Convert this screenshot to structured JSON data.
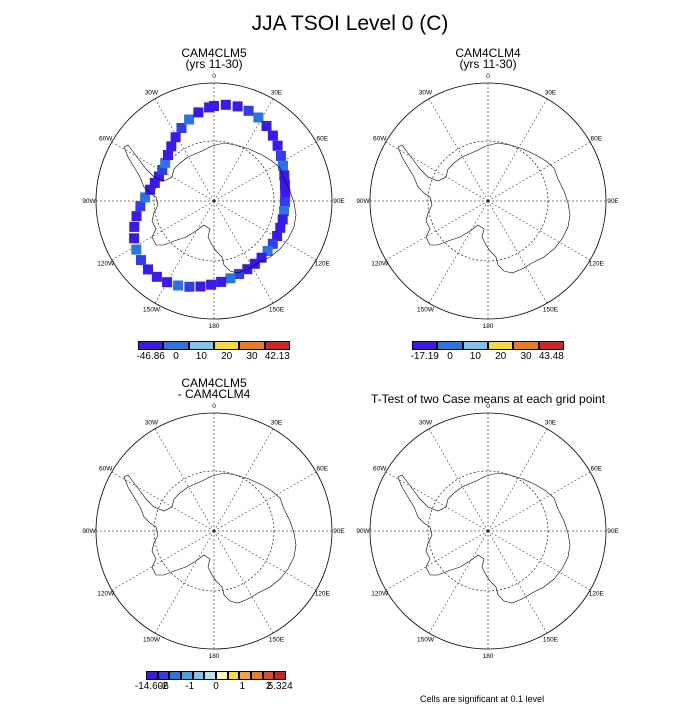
{
  "title": "JJA TSOI Level 0 (C)",
  "panels": [
    {
      "title": "CAM4CLM5",
      "subtitle": "(yrs 11-30)",
      "filled": true
    },
    {
      "title": "CAM4CLM4",
      "subtitle": "(yrs 11-30)",
      "filled": false
    },
    {
      "title": "CAM4CLM5",
      "subtitle": "- CAM4CLM4",
      "filled": false
    },
    {
      "title": "T-Test of two Case means at each grid point",
      "subtitle": "",
      "filled": false
    }
  ],
  "map_labels": {
    "lon_0": "0",
    "lon_30E": "30E",
    "lon_60E": "60E",
    "lon_90E": "90E",
    "lon_120E": "120E",
    "lon_150E": "150E",
    "lon_180": "180",
    "lon_150W": "150W",
    "lon_120W": "120W",
    "lon_90W": "90W",
    "lon_60W": "60W",
    "lon_30W": "30W"
  },
  "colorbars": [
    {
      "labels": [
        "-46.86",
        "0",
        "10",
        "20",
        "30",
        "42.13"
      ],
      "colors": [
        "#3a19f0",
        "#2a74e6",
        "#7ec4ea",
        "#f5dc3c",
        "#f07a1e",
        "#d22222"
      ]
    },
    {
      "labels": [
        "-17.19",
        "0",
        "10",
        "20",
        "30",
        "43.48"
      ],
      "colors": [
        "#3a19f0",
        "#2a74e6",
        "#7ec4ea",
        "#f5dc3c",
        "#f07a1e",
        "#d22222"
      ]
    },
    {
      "labels": [
        "-14.606",
        "-2",
        "-1",
        "0",
        "1",
        "2",
        "5.324"
      ],
      "colors": [
        "#3a19f0",
        "#2f3cf0",
        "#2a74e6",
        "#4aa0e8",
        "#7ec4ea",
        "#b8e0f4",
        "#fff6b0",
        "#f5dc3c",
        "#f5a33c",
        "#f07a1e",
        "#e84a1e",
        "#d22222"
      ]
    }
  ],
  "footnote": "Cells are significant at 0.1 level"
}
